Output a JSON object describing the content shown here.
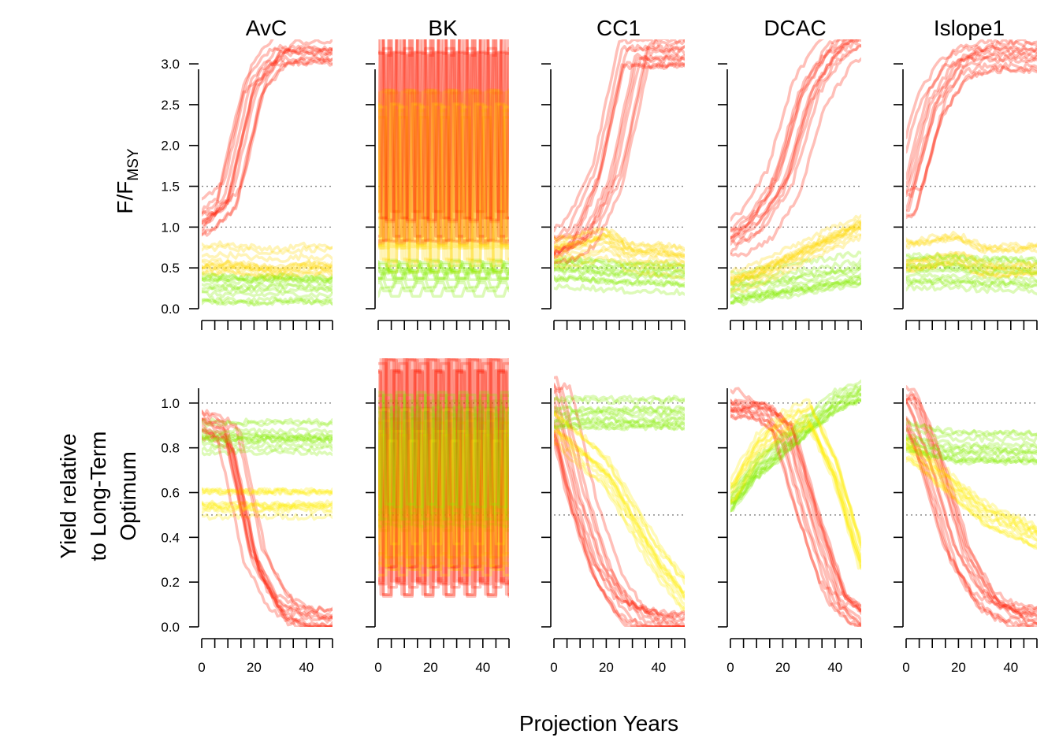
{
  "chart_data": {
    "type": "line",
    "panels_columns": [
      "AvC",
      "BK",
      "CC1",
      "DCAC",
      "Islope1"
    ],
    "xlabel": "Projection Years",
    "x_ticks": [
      0,
      20,
      40
    ],
    "xlim": [
      0,
      50
    ],
    "colors": {
      "good": "#66ee00",
      "medium": "#ffee00",
      "poor": "#ff0000"
    },
    "rows": [
      {
        "id": "ffmsy",
        "ylabel_main": "F",
        "ylabel_sub": "MSY",
        "ylim": [
          0,
          3.3
        ],
        "y_ticks": [
          "0.0",
          "0.5",
          "1.0",
          "1.5",
          "2.0",
          "2.5",
          "3.0"
        ],
        "reference_lines": [
          0.5,
          1.0,
          1.5
        ],
        "approx_series_by_mp": {
          "AvC": {
            "low": [
              0.28,
              0.27,
              0.26,
              0.28,
              0.27,
              0.26
            ],
            "mid": [
              0.6,
              0.62,
              0.58,
              0.55,
              0.6,
              0.58
            ],
            "high": [
              1.1,
              1.4,
              2.8,
              3.2,
              3.2,
              3.2
            ]
          },
          "BK": {
            "low": [
              0.4,
              0.3,
              0.5,
              0.3,
              0.4,
              0.3
            ],
            "mid": [
              0.6,
              2.5,
              0.5,
              3.0,
              0.6,
              2.0
            ],
            "high": [
              1.0,
              3.3,
              0.8,
              3.3,
              1.2,
              3.3
            ]
          },
          "CC1": {
            "low": [
              0.45,
              0.45,
              0.42,
              0.4,
              0.4,
              0.38
            ],
            "mid": [
              0.65,
              0.7,
              0.8,
              0.6,
              0.6,
              0.55
            ],
            "high": [
              0.7,
              0.9,
              1.6,
              3.1,
              3.1,
              3.1
            ]
          },
          "DCAC": {
            "low": [
              0.25,
              0.3,
              0.35,
              0.4,
              0.45,
              0.5
            ],
            "mid": [
              0.3,
              0.4,
              0.55,
              0.7,
              0.85,
              1.0
            ],
            "high": [
              0.8,
              1.0,
              1.5,
              2.6,
              3.1,
              3.3
            ]
          },
          "Islope1": {
            "low": [
              0.45,
              0.45,
              0.44,
              0.42,
              0.42,
              0.4
            ],
            "mid": [
              0.65,
              0.7,
              0.75,
              0.6,
              0.6,
              0.62
            ],
            "high": [
              1.3,
              2.5,
              3.0,
              3.1,
              3.1,
              3.1
            ]
          }
        }
      },
      {
        "id": "yield",
        "ylabel_lines": [
          "Yield relative",
          "to Long-Term",
          "Optimum"
        ],
        "ylim": [
          0,
          1.2
        ],
        "y_ticks": [
          "0.0",
          "0.2",
          "0.4",
          "0.6",
          "0.8",
          "1.0"
        ],
        "reference_lines": [
          0.5,
          1.0
        ],
        "approx_series_by_mp": {
          "AvC": {
            "good": [
              0.85,
              0.85,
              0.85,
              0.85,
              0.85,
              0.85
            ],
            "medium": [
              0.55,
              0.55,
              0.55,
              0.55,
              0.55,
              0.55
            ],
            "poor": [
              0.9,
              0.85,
              0.3,
              0.08,
              0.02,
              0.01
            ]
          },
          "BK": {
            "good": [
              1.0,
              0.5,
              1.0,
              0.5,
              1.0,
              0.5
            ],
            "medium": [
              0.9,
              0.3,
              0.9,
              0.2,
              0.9,
              0.2
            ],
            "poor": [
              1.2,
              0.2,
              1.2,
              0.1,
              1.2,
              0.05
            ]
          },
          "CC1": {
            "good": [
              0.95,
              0.95,
              0.95,
              0.95,
              0.95,
              0.95
            ],
            "medium": [
              0.9,
              0.8,
              0.7,
              0.5,
              0.3,
              0.15
            ],
            "poor": [
              1.1,
              0.6,
              0.25,
              0.08,
              0.03,
              0.01
            ]
          },
          "DCAC": {
            "good": [
              0.55,
              0.7,
              0.8,
              0.9,
              1.0,
              1.05
            ],
            "medium": [
              0.6,
              0.8,
              0.9,
              0.95,
              0.7,
              0.3
            ],
            "poor": [
              1.0,
              1.0,
              0.9,
              0.5,
              0.15,
              0.05
            ]
          },
          "Islope1": {
            "good": [
              0.85,
              0.82,
              0.8,
              0.8,
              0.8,
              0.8
            ],
            "medium": [
              0.8,
              0.7,
              0.6,
              0.5,
              0.45,
              0.4
            ],
            "poor": [
              1.0,
              0.7,
              0.3,
              0.1,
              0.03,
              0.01
            ]
          }
        }
      }
    ]
  }
}
